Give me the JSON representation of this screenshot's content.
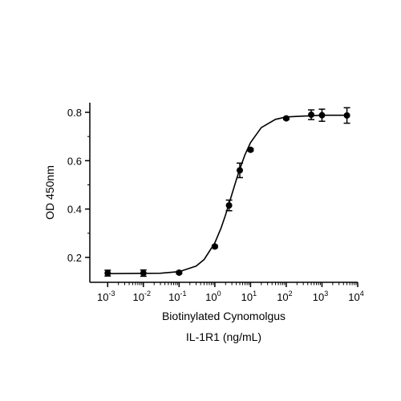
{
  "chart_data": {
    "type": "scatter",
    "xlabel": [
      "Biotinylated Cynomolgus",
      "IL-1R1 (ng/mL)"
    ],
    "ylabel": "OD 450nm",
    "log_x": true,
    "color": "#000000",
    "x": [
      0.001,
      0.01,
      0.1,
      1,
      2.5,
      5,
      10,
      100,
      500,
      1000,
      5000
    ],
    "values": [
      0.135,
      0.135,
      0.137,
      0.245,
      0.415,
      0.56,
      0.645,
      0.775,
      0.79,
      0.788,
      0.787
    ],
    "errors": [
      0.012,
      0.013,
      0.005,
      0.005,
      0.022,
      0.03,
      0.005,
      0.005,
      0.02,
      0.025,
      0.032
    ],
    "curve": {
      "x": [
        0.001,
        0.01,
        0.03,
        0.1,
        0.3,
        0.5,
        1,
        1.5,
        2,
        3,
        4,
        5,
        7,
        10,
        20,
        50,
        100,
        1000,
        5000
      ],
      "values": [
        0.133,
        0.134,
        0.1346,
        0.141,
        0.164,
        0.191,
        0.26,
        0.322,
        0.376,
        0.4605,
        0.521,
        0.565,
        0.625,
        0.675,
        0.737,
        0.771,
        0.781,
        0.788,
        0.788
      ]
    },
    "xlim": [
      0.0003162,
      10000
    ],
    "ylim": [
      0.097,
      0.84
    ],
    "xticks": [
      {
        "value": 0.001,
        "label": "10",
        "exponent": "-3"
      },
      {
        "value": 0.01,
        "label": "10",
        "exponent": "-2"
      },
      {
        "value": 0.1,
        "label": "10",
        "exponent": "-1"
      },
      {
        "value": 1,
        "label": "10",
        "exponent": "0"
      },
      {
        "value": 10,
        "label": "10",
        "exponent": "1"
      },
      {
        "value": 100,
        "label": "10",
        "exponent": "2"
      },
      {
        "value": 1000,
        "label": "10",
        "exponent": "3"
      },
      {
        "value": 10000,
        "label": "10",
        "exponent": "4"
      }
    ],
    "yticks": [
      0.2,
      0.4,
      0.6,
      0.8
    ]
  }
}
